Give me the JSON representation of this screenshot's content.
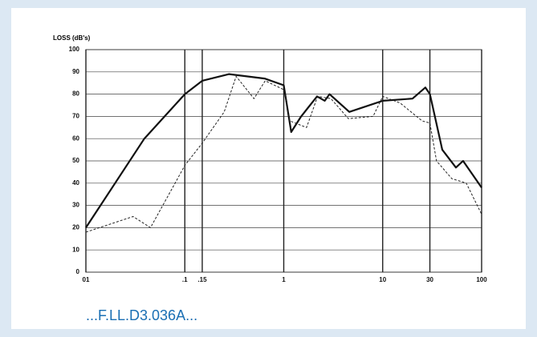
{
  "chart_data": {
    "type": "line",
    "y_label": "LOSS (dB's)",
    "caption": "...F.LL.D3.036A...",
    "xscale": "log",
    "xlim": [
      0.01,
      100
    ],
    "ylim": [
      0,
      100
    ],
    "xticks": [
      {
        "value": 0.01,
        "label": "01"
      },
      {
        "value": 0.1,
        "label": ".1"
      },
      {
        "value": 0.15,
        "label": ".15"
      },
      1,
      10,
      30,
      100
    ],
    "yticks": [
      0,
      10,
      20,
      30,
      40,
      50,
      60,
      70,
      80,
      90,
      100
    ],
    "grid": true,
    "series": [
      {
        "color": "#111111",
        "style": "solid",
        "x": [
          0.01,
          0.039,
          0.1,
          0.15,
          0.28,
          0.64,
          1,
          1.19,
          1.5,
          2.17,
          2.6,
          2.9,
          4.6,
          10,
          20,
          27,
          30,
          40,
          55,
          65,
          75,
          100
        ],
        "values": [
          20,
          60,
          80,
          86,
          89,
          87,
          84,
          63,
          70,
          79,
          77,
          80,
          72,
          77,
          78,
          83,
          80,
          55,
          47,
          50,
          46,
          38
        ]
      },
      {
        "color": "#222222",
        "style": "dashed",
        "x": [
          0.01,
          0.03,
          0.045,
          0.1,
          0.15,
          0.25,
          0.33,
          0.5,
          0.65,
          1,
          1.15,
          1.7,
          2.2,
          3,
          4.5,
          8,
          10,
          15,
          25,
          30,
          35,
          50,
          70,
          100
        ],
        "values": [
          18,
          25,
          20,
          48,
          58,
          72,
          88,
          78,
          86,
          82,
          68,
          65,
          79,
          78,
          69,
          70,
          79,
          76,
          68,
          67,
          50,
          42,
          40,
          26
        ]
      }
    ]
  }
}
